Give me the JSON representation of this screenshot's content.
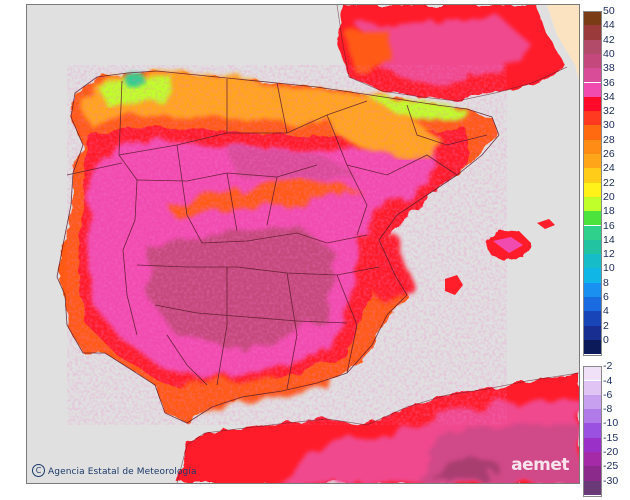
{
  "map": {
    "credit": "Agencia Estatal de Meteorología",
    "credit_icon": "copyright-circle-icon",
    "watermark": "aemet"
  },
  "legend": {
    "positive": [
      {
        "label": "50",
        "color": "#7a3c14"
      },
      {
        "label": "44",
        "color": "#9a3a3a"
      },
      {
        "label": "42",
        "color": "#b24a6a"
      },
      {
        "label": "40",
        "color": "#c5487c"
      },
      {
        "label": "38",
        "color": "#d94c98"
      },
      {
        "label": "36",
        "color": "#f24bb0"
      },
      {
        "label": "34",
        "color": "#ff0a2a"
      },
      {
        "label": "32",
        "color": "#ff3a20"
      },
      {
        "label": "30",
        "color": "#ff6a10"
      },
      {
        "label": "28",
        "color": "#ff8c14"
      },
      {
        "label": "26",
        "color": "#ffa51a"
      },
      {
        "label": "24",
        "color": "#ffcc1a"
      },
      {
        "label": "22",
        "color": "#fff21a"
      },
      {
        "label": "20",
        "color": "#c0ff2a"
      },
      {
        "label": "18",
        "color": "#4ce33c"
      },
      {
        "label": "16",
        "color": "#2ed08c"
      },
      {
        "label": "14",
        "color": "#22c3a0"
      },
      {
        "label": "12",
        "color": "#16bcc8"
      },
      {
        "label": "10",
        "color": "#10b6e6"
      },
      {
        "label": "8",
        "color": "#1a90f0"
      },
      {
        "label": "6",
        "color": "#1a6ae0"
      },
      {
        "label": "4",
        "color": "#1846b8"
      },
      {
        "label": "2",
        "color": "#182e90"
      },
      {
        "label": "0",
        "color": "#0c1a5a"
      }
    ],
    "negative": [
      {
        "label": "-2",
        "color": "#f0e0f8"
      },
      {
        "label": "-4",
        "color": "#e0c4f4"
      },
      {
        "label": "-6",
        "color": "#c8a0f0"
      },
      {
        "label": "-8",
        "color": "#b07ae8"
      },
      {
        "label": "-10",
        "color": "#9a50e0"
      },
      {
        "label": "-15",
        "color": "#9a30c8"
      },
      {
        "label": "-20",
        "color": "#a52aa8"
      },
      {
        "label": "-25",
        "color": "#8c2a8c"
      },
      {
        "label": "-30",
        "color": "#6a3a78"
      }
    ]
  }
}
